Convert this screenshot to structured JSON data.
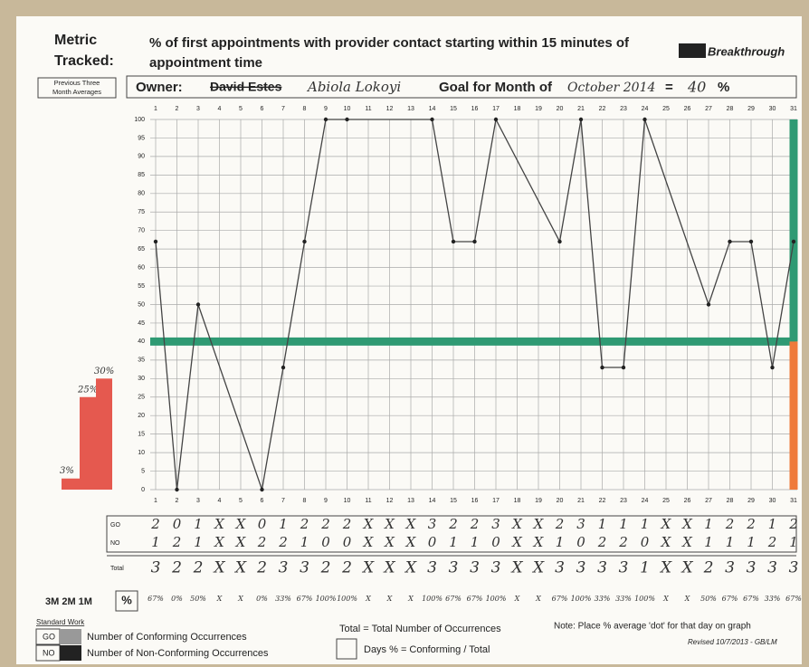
{
  "header": {
    "metric_label": [
      "Metric",
      "Tracked:"
    ],
    "metric": [
      "% of first appointments with provider contact starting within 15 minutes of",
      "appointment time"
    ],
    "logo": "Breakthrough",
    "previous_label": [
      "Previous Three",
      "Month Averages"
    ],
    "owner_label": "Owner:",
    "owner_old": "David Estes",
    "owner": "Abiola Lokoyi",
    "goal_label": "Goal for Month of",
    "month": "October 2014",
    "equals": "=",
    "percent": "%"
  },
  "chart_data": {
    "type": "line",
    "xticks": [
      1,
      2,
      3,
      4,
      5,
      6,
      7,
      8,
      9,
      10,
      11,
      12,
      13,
      14,
      15,
      16,
      17,
      18,
      19,
      20,
      21,
      22,
      23,
      24,
      25,
      26,
      27,
      28,
      29,
      30,
      31
    ],
    "xlim": [
      1,
      31
    ],
    "x": [
      1,
      2,
      3,
      6,
      7,
      8,
      9,
      10,
      14,
      15,
      16,
      17,
      20,
      21,
      22,
      23,
      24,
      27,
      28,
      29,
      30,
      31
    ],
    "values": [
      67,
      0,
      50,
      0,
      33,
      67,
      100,
      100,
      100,
      67,
      67,
      100,
      67,
      100,
      33,
      33,
      100,
      50,
      67,
      67,
      33,
      67
    ],
    "color": "#444444",
    "ylim": [
      0,
      100
    ],
    "yticks": [
      0,
      5,
      10,
      15,
      20,
      25,
      30,
      35,
      40,
      45,
      50,
      55,
      60,
      65,
      70,
      75,
      80,
      85,
      90,
      95,
      100
    ],
    "grid": true,
    "goal": 40,
    "goal_color": "#2f9a73",
    "previous_averages": {
      "values": [
        3,
        25,
        30
      ],
      "value_labels": [
        "3%",
        "25%",
        "30%"
      ],
      "color": "#e5594f"
    }
  },
  "table": {
    "row_labels": [
      "GO",
      "NO",
      "Total"
    ],
    "rows": [
      [
        2,
        0,
        1,
        "X",
        "X",
        0,
        1,
        2,
        2,
        2,
        "X",
        "X",
        "X",
        3,
        2,
        2,
        3,
        "X",
        "X",
        2,
        3,
        1,
        1,
        1,
        "X",
        "X",
        1,
        2,
        2,
        1,
        2
      ],
      [
        1,
        2,
        1,
        "X",
        "X",
        2,
        2,
        1,
        0,
        0,
        "X",
        "X",
        "X",
        0,
        1,
        1,
        0,
        "X",
        "X",
        1,
        0,
        2,
        2,
        0,
        "X",
        "X",
        1,
        1,
        1,
        2,
        1
      ],
      [
        3,
        2,
        2,
        "X",
        "X",
        2,
        3,
        3,
        2,
        2,
        "X",
        "X",
        "X",
        3,
        3,
        3,
        3,
        "X",
        "X",
        3,
        3,
        3,
        3,
        1,
        "X",
        "X",
        2,
        3,
        3,
        3,
        3
      ]
    ],
    "percent_label": "%",
    "percents": [
      "67%",
      "0%",
      "50%",
      "X",
      "X",
      "0%",
      "33%",
      "67%",
      "100%",
      "100%",
      "X",
      "X",
      "X",
      "100%",
      "67%",
      "67%",
      "100%",
      "X",
      "X",
      "67%",
      "100%",
      "33%",
      "33%",
      "100%",
      "X",
      "X",
      "50%",
      "67%",
      "67%",
      "33%",
      "67%"
    ]
  },
  "footer": {
    "periods": "3M  2M  1M",
    "standard_work": "Standard Work",
    "go": "GO",
    "go_text": "Number of Conforming Occurrences",
    "no": "NO",
    "no_text": "Number of Non-Conforming Occurrences",
    "total_text": "Total = Total Number of Occurrences",
    "days_text": "Days % = Conforming / Total",
    "note": "Note: Place % average 'dot' for that day on graph",
    "revised": "Revised 10/7/2013 - GB/LM"
  }
}
